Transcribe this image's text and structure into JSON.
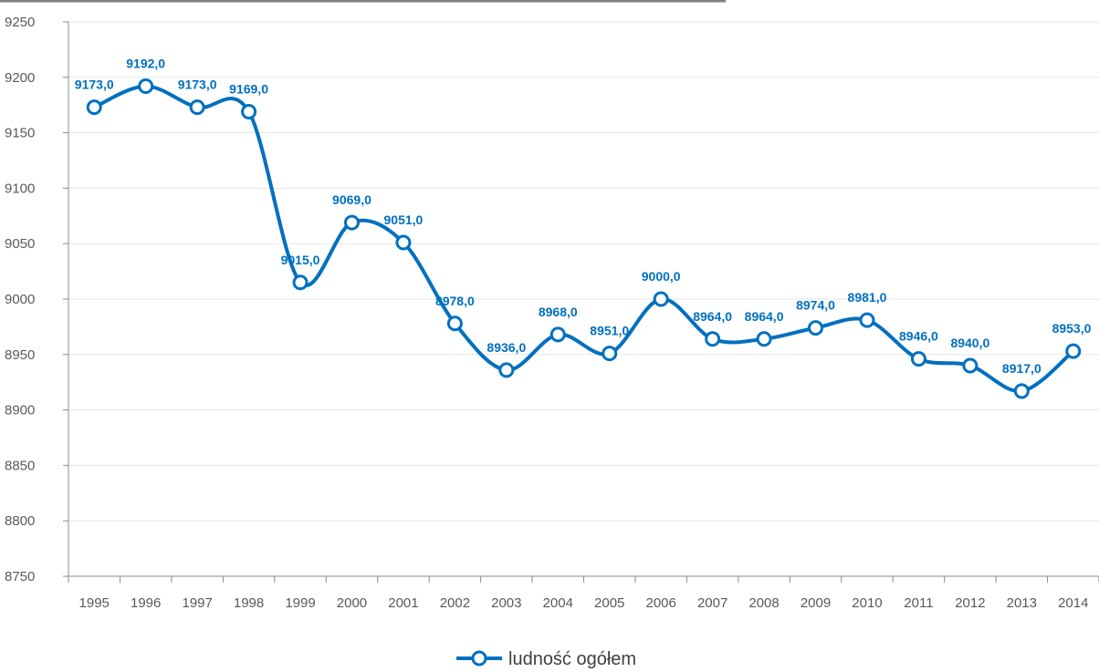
{
  "chart_data": {
    "type": "line",
    "title": "",
    "xlabel": "",
    "ylabel": "",
    "x": [
      "1995",
      "1996",
      "1997",
      "1998",
      "1999",
      "2000",
      "2001",
      "2002",
      "2003",
      "2004",
      "2005",
      "2006",
      "2007",
      "2008",
      "2009",
      "2010",
      "2011",
      "2012",
      "2013",
      "2014"
    ],
    "series": [
      {
        "name": "ludność ogółem",
        "values": [
          9173.0,
          9192.0,
          9173.0,
          9169.0,
          9015.0,
          9069.0,
          9051.0,
          8978.0,
          8936.0,
          8968.0,
          8951.0,
          9000.0,
          8964.0,
          8964.0,
          8974.0,
          8981.0,
          8946.0,
          8940.0,
          8917.0,
          8953.0
        ],
        "labels": [
          "9173,0",
          "9192,0",
          "9173,0",
          "9169,0",
          "9015,0",
          "9069,0",
          "9051,0",
          "8978,0",
          "8936,0",
          "8968,0",
          "8951,0",
          "9000,0",
          "8964,0",
          "8964,0",
          "8974,0",
          "8981,0",
          "8946,0",
          "8940,0",
          "8917,0",
          "8953,0"
        ]
      }
    ],
    "ylim": [
      8750,
      9250
    ],
    "yticks": [
      "8750",
      "8800",
      "8850",
      "8900",
      "8950",
      "9000",
      "9050",
      "9100",
      "9150",
      "9200",
      "9250"
    ],
    "grid": true,
    "smooth": true,
    "legend_position": "bottom",
    "colors": {
      "line": "#0070c0",
      "marker_fill": "#ffffff",
      "grid": "#e6e6e6",
      "axis": "#8c8c8c",
      "label": "#0070c0"
    }
  }
}
